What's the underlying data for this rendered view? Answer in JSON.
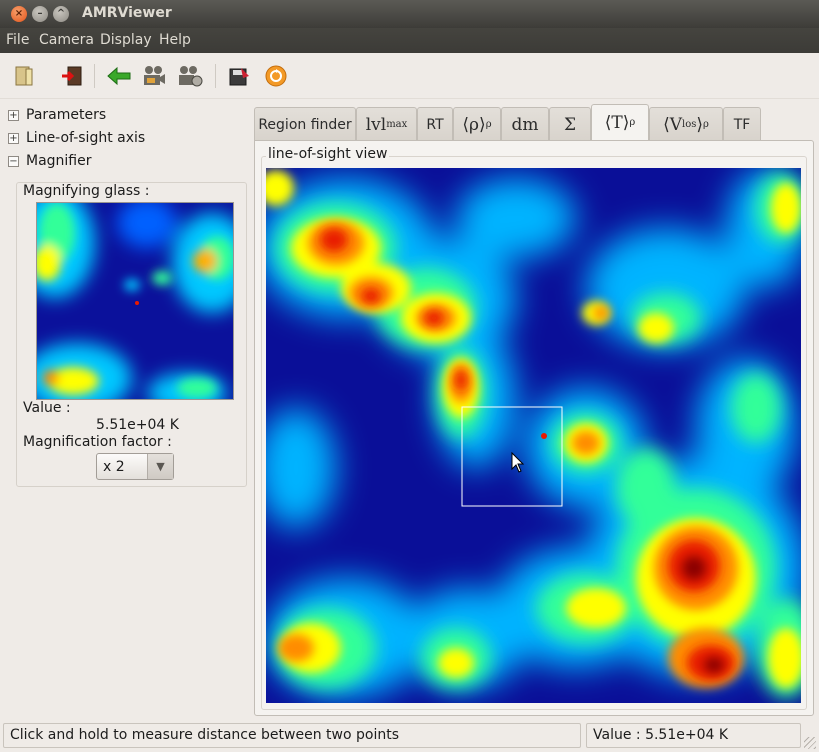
{
  "window": {
    "title": "AMRViewer",
    "close_glyph": "×",
    "min_glyph": "–",
    "max_glyph": "^"
  },
  "menu": [
    "File",
    "Camera",
    "Display",
    "Help"
  ],
  "toolbar": {
    "icons": [
      "open-folder-icon",
      "exit-icon",
      "back-arrow-icon",
      "camera-icon",
      "camera-settings-icon",
      "save-icon",
      "refresh-icon"
    ]
  },
  "left_panel": {
    "tree": [
      {
        "label": "Parameters",
        "expander": "+"
      },
      {
        "label": "Line-of-sight axis",
        "expander": "+"
      },
      {
        "label": "Magnifier",
        "expander": "−"
      }
    ],
    "magnifier": {
      "title": "Magnifying glass :",
      "value_label": "Value :",
      "value": "5.51e+04 K",
      "factor_label": "Magnification factor :",
      "factor_value": "x 2",
      "dropdown_glyph": "▼"
    }
  },
  "tabs": [
    {
      "id": "region",
      "label": "Region finder"
    },
    {
      "id": "lvlmax",
      "main": "lvl",
      "sub": "max"
    },
    {
      "id": "rt",
      "label": "RT"
    },
    {
      "id": "rho",
      "main": "⟨ρ⟩",
      "sub": "ρ"
    },
    {
      "id": "dm",
      "main": "dm"
    },
    {
      "id": "sigma",
      "main": "Σ"
    },
    {
      "id": "temp",
      "main": "⟨T⟩",
      "sub": "ρ",
      "active": true
    },
    {
      "id": "vlos",
      "main": "⟨V",
      "sub_inner": "los",
      "main2": "⟩",
      "sub": "ρ"
    },
    {
      "id": "tf",
      "label": "TF"
    }
  ],
  "view": {
    "group_title": "line-of-sight view"
  },
  "colors": {
    "background": "#0a0f98",
    "colormap": [
      "#0a0f98",
      "#0050ff",
      "#00c8ff",
      "#33ff99",
      "#ffff00",
      "#ff8c00",
      "#e81a00",
      "#8b0000"
    ]
  },
  "status": {
    "message": "Click and hold to measure distance between two points",
    "value": "Value : 5.51e+04 K"
  }
}
